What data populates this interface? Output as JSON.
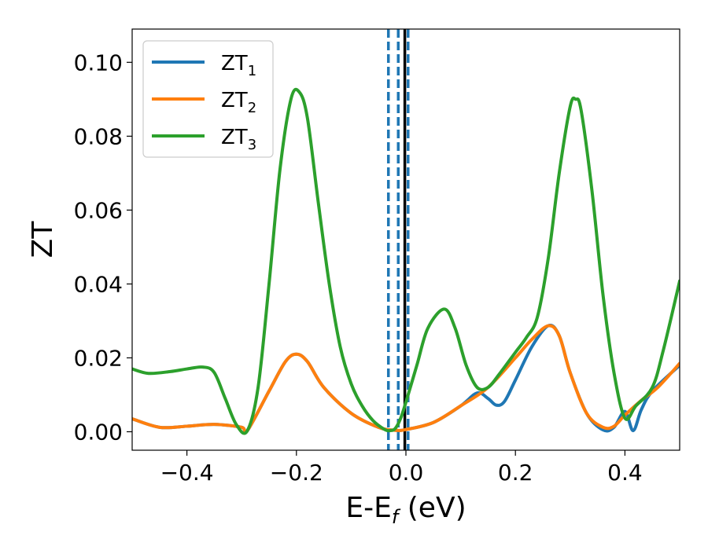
{
  "chart_data": {
    "type": "line",
    "xlabel": "E-E",
    "xlabel_sub": "f",
    "xlabel_unit": " (eV)",
    "ylabel": "ZT",
    "xlim": [
      -0.5,
      0.5
    ],
    "ylim": [
      -0.005,
      0.109
    ],
    "x_ticks": [
      -0.4,
      -0.2,
      0.0,
      0.2,
      0.4
    ],
    "x_tick_labels": [
      "−0.4",
      "−0.2",
      "0.0",
      "0.2",
      "0.4"
    ],
    "y_ticks": [
      0.0,
      0.02,
      0.04,
      0.06,
      0.08,
      0.1
    ],
    "y_tick_labels": [
      "0.00",
      "0.02",
      "0.04",
      "0.06",
      "0.08",
      "0.10"
    ],
    "grid": false,
    "legend_position": "top-left",
    "vertical_lines": [
      {
        "x": -0.032,
        "style": "dashed",
        "color": "#1f77b4"
      },
      {
        "x": -0.014,
        "style": "dashed",
        "color": "#1f77b4"
      },
      {
        "x": -0.002,
        "style": "solid",
        "color": "#000000"
      },
      {
        "x": 0.004,
        "style": "dashed",
        "color": "#1f77b4"
      }
    ],
    "series": [
      {
        "name": "ZT",
        "name_sub": "1",
        "color": "#1f77b4",
        "x": [
          -0.5,
          -0.45,
          -0.4,
          -0.35,
          -0.3,
          -0.29,
          -0.25,
          -0.22,
          -0.2,
          -0.18,
          -0.15,
          -0.1,
          -0.05,
          -0.02,
          0.0,
          0.05,
          0.1,
          0.13,
          0.15,
          0.165,
          0.18,
          0.2,
          0.23,
          0.26,
          0.28,
          0.3,
          0.33,
          0.36,
          0.38,
          0.4,
          0.415,
          0.43,
          0.45,
          0.5
        ],
        "y": [
          0.0035,
          0.0012,
          0.0015,
          0.002,
          0.0012,
          0.0002,
          0.011,
          0.019,
          0.021,
          0.019,
          0.012,
          0.005,
          0.0012,
          0.0004,
          0.0006,
          0.0025,
          0.007,
          0.0105,
          0.009,
          0.0072,
          0.0082,
          0.014,
          0.023,
          0.0287,
          0.026,
          0.016,
          0.005,
          0.0005,
          0.0012,
          0.0055,
          0.0003,
          0.006,
          0.011,
          0.018
        ]
      },
      {
        "name": "ZT",
        "name_sub": "2",
        "color": "#ff7f0e",
        "x": [
          -0.5,
          -0.45,
          -0.4,
          -0.35,
          -0.3,
          -0.29,
          -0.25,
          -0.22,
          -0.2,
          -0.18,
          -0.15,
          -0.1,
          -0.05,
          -0.02,
          0.0,
          0.05,
          0.1,
          0.15,
          0.2,
          0.23,
          0.26,
          0.28,
          0.3,
          0.33,
          0.36,
          0.38,
          0.4,
          0.43,
          0.46,
          0.5
        ],
        "y": [
          0.0035,
          0.0012,
          0.0015,
          0.002,
          0.0012,
          0.0002,
          0.011,
          0.019,
          0.021,
          0.019,
          0.012,
          0.005,
          0.0012,
          0.0004,
          0.0006,
          0.0025,
          0.007,
          0.012,
          0.02,
          0.025,
          0.0287,
          0.026,
          0.016,
          0.005,
          0.0012,
          0.0015,
          0.0045,
          0.0085,
          0.012,
          0.0185
        ]
      },
      {
        "name": "ZT",
        "name_sub": "3",
        "color": "#2ca02c",
        "x": [
          -0.5,
          -0.47,
          -0.43,
          -0.4,
          -0.37,
          -0.35,
          -0.33,
          -0.31,
          -0.29,
          -0.27,
          -0.25,
          -0.23,
          -0.21,
          -0.195,
          -0.18,
          -0.16,
          -0.14,
          -0.12,
          -0.1,
          -0.08,
          -0.06,
          -0.04,
          -0.03,
          -0.02,
          -0.01,
          0.0,
          0.02,
          0.04,
          0.07,
          0.09,
          0.11,
          0.13,
          0.15,
          0.17,
          0.2,
          0.22,
          0.24,
          0.26,
          0.28,
          0.3,
          0.31,
          0.32,
          0.34,
          0.36,
          0.38,
          0.4,
          0.42,
          0.45,
          0.47,
          0.5
        ],
        "y": [
          0.017,
          0.0158,
          0.0163,
          0.017,
          0.0175,
          0.016,
          0.009,
          0.002,
          0.0002,
          0.012,
          0.04,
          0.071,
          0.09,
          0.092,
          0.085,
          0.062,
          0.04,
          0.023,
          0.013,
          0.007,
          0.003,
          0.0007,
          0.0003,
          0.0008,
          0.0035,
          0.008,
          0.018,
          0.028,
          0.0332,
          0.028,
          0.018,
          0.012,
          0.012,
          0.0155,
          0.0215,
          0.0255,
          0.031,
          0.047,
          0.07,
          0.088,
          0.09,
          0.087,
          0.065,
          0.037,
          0.016,
          0.0037,
          0.007,
          0.012,
          0.022,
          0.0408
        ]
      }
    ]
  }
}
